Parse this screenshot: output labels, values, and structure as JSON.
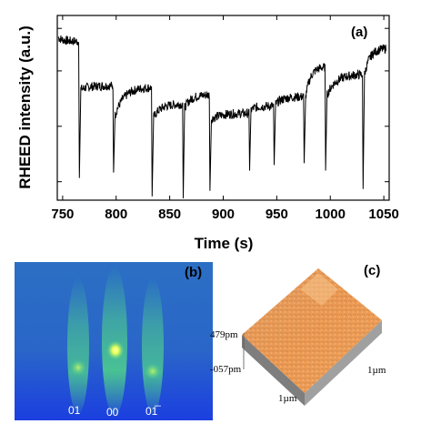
{
  "panel_a": {
    "tag": "(a)",
    "chart_data": {
      "type": "line",
      "xlabel": "Time (s)",
      "ylabel": "RHEED intensity (a.u.)",
      "xlim": [
        745,
        1055
      ],
      "ylim": [
        0,
        1
      ],
      "x_ticks": [
        "750",
        "800",
        "850",
        "900",
        "950",
        "1000",
        "1050"
      ],
      "x_tick_values": [
        750,
        800,
        850,
        900,
        950,
        1000,
        1050
      ],
      "y_ticks_labeled": false,
      "grid": false,
      "series": [
        {
          "color": "#000000",
          "segments": [
            {
              "x_start": 746,
              "x_end": 765,
              "y_start": 0.88,
              "y_end": 0.86,
              "dip_y": 0.12
            },
            {
              "x_start": 767,
              "x_end": 797,
              "y_start": 0.6,
              "y_end": 0.62,
              "dip_y": 0.15
            },
            {
              "x_start": 799,
              "x_end": 833,
              "y_start": 0.46,
              "y_end": 0.61,
              "dip_y": 0.02
            },
            {
              "x_start": 835,
              "x_end": 862,
              "y_start": 0.45,
              "y_end": 0.52,
              "dip_y": 0.01
            },
            {
              "x_start": 864,
              "x_end": 887,
              "y_start": 0.5,
              "y_end": 0.57,
              "dip_y": 0.05
            },
            {
              "x_start": 889,
              "x_end": 924,
              "y_start": 0.44,
              "y_end": 0.47,
              "dip_y": 0.16
            },
            {
              "x_start": 926,
              "x_end": 947,
              "y_start": 0.49,
              "y_end": 0.51,
              "dip_y": 0.19
            },
            {
              "x_start": 949,
              "x_end": 975,
              "y_start": 0.52,
              "y_end": 0.56,
              "dip_y": 0.2
            },
            {
              "x_start": 977,
              "x_end": 995,
              "y_start": 0.56,
              "y_end": 0.72,
              "dip_y": 0.16
            },
            {
              "x_start": 997,
              "x_end": 1030,
              "y_start": 0.57,
              "y_end": 0.68,
              "dip_y": 0.06
            },
            {
              "x_start": 1032,
              "x_end": 1052,
              "y_start": 0.68,
              "y_end": 0.82,
              "dip_y": null
            }
          ]
        }
      ]
    }
  },
  "panel_b": {
    "tag": "(b)",
    "streak_labels": [
      "01",
      "00",
      "01̅"
    ],
    "colors": {
      "bg_top": "#1f5fc8",
      "bg_bottom": "#1a3fd6",
      "streak": "#4fd48a",
      "spot": "#f4ff6a"
    }
  },
  "panel_c": {
    "tag": "(c)",
    "z_labels": [
      "479pm",
      "-057pm"
    ],
    "scale_labels": [
      "1µm",
      "1µm"
    ],
    "colors": {
      "surface": "#e8944a",
      "surface_light": "#f5c08a",
      "side": "#8a8a8a"
    }
  }
}
